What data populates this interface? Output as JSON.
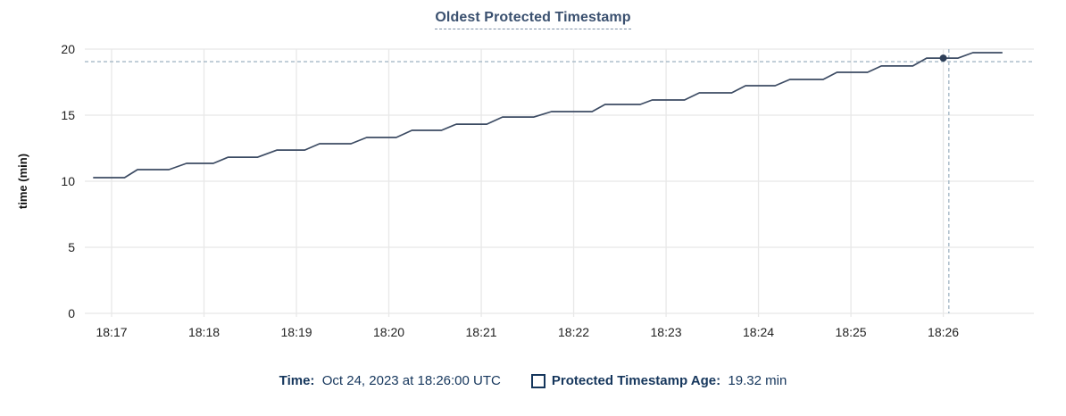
{
  "title": "Oldest Protected Timestamp",
  "legend": {
    "time_label": "Time:",
    "time_value": "  Oct 24, 2023 at 18:26:00 UTC",
    "series_label": "Protected Timestamp Age:",
    "series_value": "  19.32 min"
  },
  "colors": {
    "title": "#3a506f",
    "legend_navy": "#15365c",
    "line": "#3c4b63",
    "dot": "#2e3f58",
    "grid": "#e8e8e8",
    "crosshair": "#a5b8c6",
    "tick_text": "#1f1f1f",
    "axis_label_text": "#111111"
  },
  "chart_data": {
    "type": "line",
    "title": "Oldest Protected Timestamp",
    "xlabel": "",
    "ylabel": "time (min)",
    "ylim": [
      0,
      20
    ],
    "y_ticks": [
      0,
      5,
      10,
      15,
      20
    ],
    "xlim": [
      -0.29,
      9.98
    ],
    "x_ticks": [
      {
        "t": 0,
        "label": "18:17"
      },
      {
        "t": 1,
        "label": "18:18"
      },
      {
        "t": 2,
        "label": "18:19"
      },
      {
        "t": 3,
        "label": "18:20"
      },
      {
        "t": 4,
        "label": "18:21"
      },
      {
        "t": 5,
        "label": "18:22"
      },
      {
        "t": 6,
        "label": "18:23"
      },
      {
        "t": 7,
        "label": "18:24"
      },
      {
        "t": 8,
        "label": "18:25"
      },
      {
        "t": 9,
        "label": "18:26"
      }
    ],
    "grid": true,
    "legend_position": "bottom",
    "series": [
      {
        "name": "Protected Timestamp Age",
        "unit": "min",
        "color": "#3c4b63",
        "points": [
          [
            -0.2,
            10.27
          ],
          [
            0.14,
            10.27
          ],
          [
            0.28,
            10.88
          ],
          [
            0.62,
            10.88
          ],
          [
            0.81,
            11.35
          ],
          [
            1.1,
            11.35
          ],
          [
            1.26,
            11.82
          ],
          [
            1.58,
            11.82
          ],
          [
            1.79,
            12.36
          ],
          [
            2.09,
            12.36
          ],
          [
            2.25,
            12.84
          ],
          [
            2.59,
            12.84
          ],
          [
            2.76,
            13.31
          ],
          [
            3.08,
            13.31
          ],
          [
            3.25,
            13.85
          ],
          [
            3.57,
            13.85
          ],
          [
            3.73,
            14.32
          ],
          [
            4.06,
            14.32
          ],
          [
            4.23,
            14.86
          ],
          [
            4.57,
            14.86
          ],
          [
            4.76,
            15.27
          ],
          [
            5.2,
            15.27
          ],
          [
            5.34,
            15.81
          ],
          [
            5.72,
            15.81
          ],
          [
            5.85,
            16.15
          ],
          [
            6.2,
            16.15
          ],
          [
            6.36,
            16.69
          ],
          [
            6.71,
            16.69
          ],
          [
            6.86,
            17.23
          ],
          [
            7.18,
            17.23
          ],
          [
            7.34,
            17.7
          ],
          [
            7.7,
            17.7
          ],
          [
            7.85,
            18.24
          ],
          [
            8.18,
            18.24
          ],
          [
            8.33,
            18.72
          ],
          [
            8.67,
            18.72
          ],
          [
            8.82,
            19.32
          ],
          [
            9.16,
            19.32
          ],
          [
            9.32,
            19.73
          ],
          [
            9.64,
            19.73
          ]
        ]
      }
    ],
    "hover": {
      "point_t": 9.0,
      "point_v": 19.32,
      "point_time_label": "18:26:00",
      "point_value_label": "19.32 min",
      "crosshair_t": 9.06,
      "crosshair_v": 19.05
    }
  }
}
